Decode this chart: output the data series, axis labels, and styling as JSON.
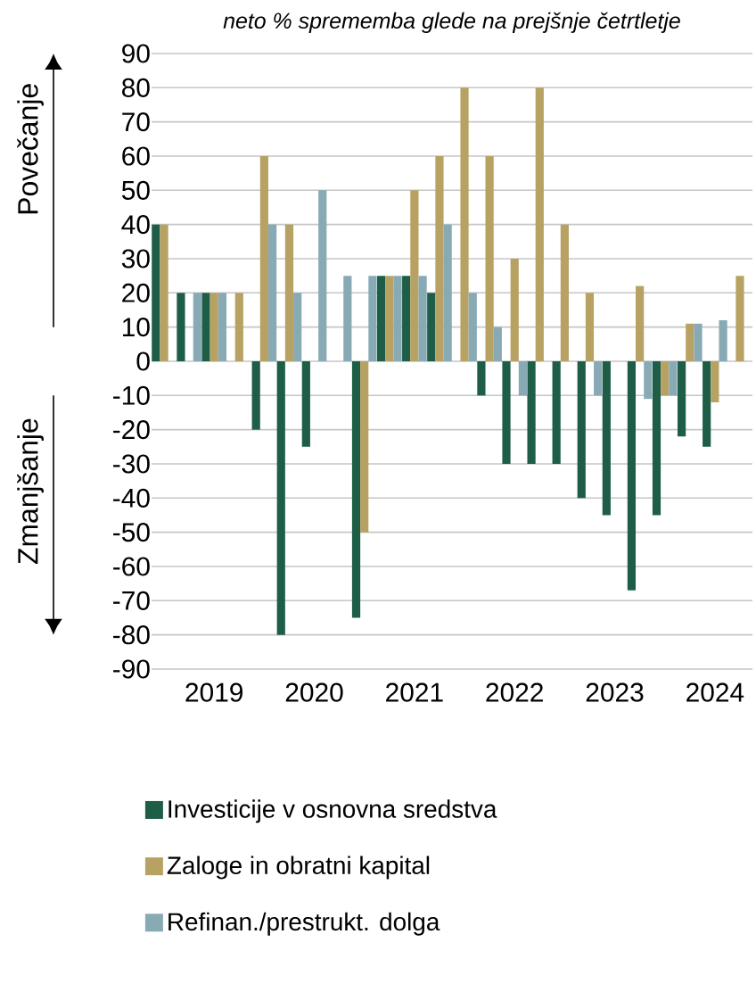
{
  "chart_data": {
    "type": "bar",
    "title": "neto % sprememba glede na prejšnje četrtletje",
    "annotations": [
      "Povečanje",
      "Zmanjšanje"
    ],
    "categories": [
      null,
      null,
      "2019",
      null,
      null,
      null,
      "2020",
      null,
      null,
      null,
      "2021",
      null,
      null,
      null,
      "2022",
      null,
      null,
      null,
      "2023",
      null,
      null,
      null,
      "2024",
      null
    ],
    "series": [
      {
        "name": "Investicije v osnovna sredstva",
        "color": "#1e5e47",
        "values": [
          40,
          20,
          20,
          0,
          -20,
          -80,
          -25,
          0,
          -75,
          25,
          25,
          20,
          0,
          -10,
          -30,
          -30,
          -30,
          -40,
          -45,
          -67,
          -45,
          -22,
          -25,
          0
        ]
      },
      {
        "name": "Zaloge in obratni kapital",
        "color": "#b8a263",
        "values": [
          40,
          0,
          20,
          20,
          60,
          40,
          0,
          0,
          -50,
          25,
          50,
          60,
          80,
          60,
          30,
          80,
          40,
          20,
          0,
          22,
          -10,
          11,
          -12,
          25
        ]
      },
      {
        "name": "Refinan./prestrukt. dolga",
        "color": "#87aab5",
        "values": [
          0,
          20,
          20,
          0,
          40,
          20,
          50,
          25,
          25,
          25,
          25,
          40,
          20,
          10,
          -10,
          0,
          0,
          -10,
          0,
          -11,
          -10,
          11,
          12,
          0
        ]
      }
    ],
    "ylim": [
      -90,
      90
    ],
    "yticks": [
      -90,
      -80,
      -70,
      -60,
      -50,
      -40,
      -30,
      -20,
      -10,
      0,
      10,
      20,
      30,
      40,
      50,
      60,
      70,
      80,
      90
    ],
    "grid": "y",
    "legend": "bottom"
  }
}
